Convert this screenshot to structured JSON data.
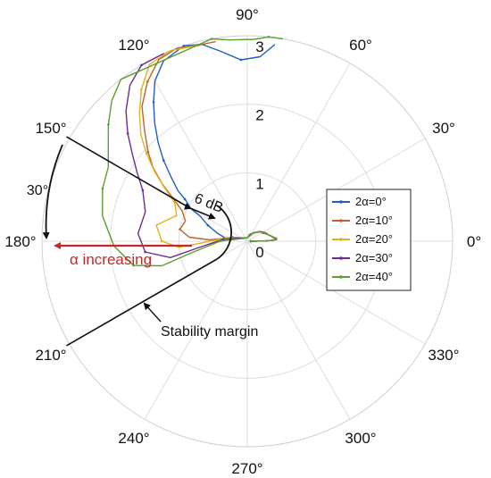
{
  "chart_data": {
    "type": "polar_line",
    "title": "",
    "theta_unit": "deg",
    "r_range": [
      0,
      3
    ],
    "r_ticks": [
      "0",
      "1",
      "2",
      "3"
    ],
    "theta_ticks": [
      "0°",
      "30°",
      "60°",
      "90°",
      "120°",
      "150°",
      "180°",
      "210°",
      "240°",
      "270°",
      "300°",
      "330°"
    ],
    "grid": true,
    "legend_position": "right",
    "series": [
      {
        "name": "2α=0°",
        "color": "#1f5fbf",
        "points": [
          [
            0.0,
            0.05
          ],
          [
            1,
            0.25
          ],
          [
            2,
            0.38
          ],
          [
            4,
            0.42
          ],
          [
            8,
            0.38
          ],
          [
            14,
            0.34
          ],
          [
            22,
            0.3
          ],
          [
            32,
            0.26
          ],
          [
            45,
            0.18
          ],
          [
            60,
            0.12
          ],
          [
            90,
            0.05
          ],
          [
            130,
            0.06
          ],
          [
            165,
            0.22
          ],
          [
            172,
            0.32
          ],
          [
            165,
            0.45
          ],
          [
            158,
            0.62
          ],
          [
            152,
            0.78
          ],
          [
            150,
            0.95
          ],
          [
            146,
            1.1
          ],
          [
            144,
            1.25
          ],
          [
            140,
            1.45
          ],
          [
            136,
            1.7
          ],
          [
            132,
            1.95
          ],
          [
            128,
            2.2
          ],
          [
            124,
            2.45
          ],
          [
            120,
            2.7
          ],
          [
            115,
            2.9
          ],
          [
            108,
            3.0
          ],
          [
            103,
            2.95
          ],
          [
            98,
            2.8
          ],
          [
            92,
            2.65
          ],
          [
            86,
            2.7
          ],
          [
            82,
            2.9
          ]
        ]
      },
      {
        "name": "2α=10°",
        "color": "#c0622a",
        "points": [
          [
            0.0,
            0.05
          ],
          [
            1,
            0.25
          ],
          [
            2,
            0.38
          ],
          [
            4,
            0.42
          ],
          [
            9,
            0.38
          ],
          [
            16,
            0.33
          ],
          [
            24,
            0.29
          ],
          [
            34,
            0.25
          ],
          [
            48,
            0.17
          ],
          [
            64,
            0.11
          ],
          [
            90,
            0.05
          ],
          [
            135,
            0.07
          ],
          [
            168,
            0.25
          ],
          [
            178,
            0.55
          ],
          [
            176,
            0.85
          ],
          [
            170,
            1.0
          ],
          [
            162,
            0.95
          ],
          [
            155,
            1.05
          ],
          [
            150,
            1.25
          ],
          [
            146,
            1.5
          ],
          [
            142,
            1.75
          ],
          [
            138,
            1.95
          ],
          [
            133,
            2.2
          ],
          [
            128,
            2.5
          ],
          [
            122,
            2.75
          ],
          [
            116,
            2.95
          ],
          [
            110,
            3.0
          ],
          [
            104,
            2.95
          ],
          [
            99,
            2.95
          ]
        ]
      },
      {
        "name": "2α=20°",
        "color": "#e0b21c",
        "points": [
          [
            0.0,
            0.05
          ],
          [
            1,
            0.25
          ],
          [
            2,
            0.38
          ],
          [
            5,
            0.42
          ],
          [
            10,
            0.37
          ],
          [
            18,
            0.32
          ],
          [
            26,
            0.28
          ],
          [
            36,
            0.24
          ],
          [
            50,
            0.16
          ],
          [
            66,
            0.1
          ],
          [
            90,
            0.05
          ],
          [
            140,
            0.07
          ],
          [
            170,
            0.3
          ],
          [
            182,
            0.65
          ],
          [
            185,
            1.0
          ],
          [
            180,
            1.25
          ],
          [
            170,
            1.35
          ],
          [
            160,
            1.1
          ],
          [
            152,
            1.2
          ],
          [
            147,
            1.45
          ],
          [
            143,
            1.7
          ],
          [
            139,
            1.95
          ],
          [
            135,
            2.2
          ],
          [
            130,
            2.45
          ],
          [
            125,
            2.7
          ],
          [
            119,
            2.95
          ],
          [
            112,
            3.0
          ],
          [
            105,
            2.95
          ]
        ]
      },
      {
        "name": "2α=30°",
        "color": "#6a2d8f",
        "points": [
          [
            0.0,
            0.05
          ],
          [
            1,
            0.25
          ],
          [
            2,
            0.38
          ],
          [
            5,
            0.42
          ],
          [
            11,
            0.37
          ],
          [
            19,
            0.31
          ],
          [
            27,
            0.27
          ],
          [
            38,
            0.23
          ],
          [
            52,
            0.16
          ],
          [
            68,
            0.1
          ],
          [
            90,
            0.05
          ],
          [
            145,
            0.08
          ],
          [
            175,
            0.35
          ],
          [
            188,
            0.75
          ],
          [
            192,
            1.15
          ],
          [
            186,
            1.5
          ],
          [
            176,
            1.6
          ],
          [
            164,
            1.55
          ],
          [
            154,
            1.7
          ],
          [
            148,
            1.9
          ],
          [
            143,
            2.1
          ],
          [
            138,
            2.35
          ],
          [
            133,
            2.6
          ],
          [
            127,
            2.85
          ],
          [
            121,
            3.0
          ],
          [
            114,
            3.0
          ]
        ]
      },
      {
        "name": "2α=40°",
        "color": "#5aa02c",
        "points": [
          [
            0.0,
            0.05
          ],
          [
            1,
            0.25
          ],
          [
            2,
            0.38
          ],
          [
            6,
            0.42
          ],
          [
            12,
            0.36
          ],
          [
            20,
            0.3
          ],
          [
            28,
            0.26
          ],
          [
            40,
            0.22
          ],
          [
            54,
            0.15
          ],
          [
            70,
            0.09
          ],
          [
            90,
            0.05
          ],
          [
            150,
            0.08
          ],
          [
            180,
            0.4
          ],
          [
            192,
            0.85
          ],
          [
            196,
            1.3
          ],
          [
            192,
            1.7
          ],
          [
            182,
            1.95
          ],
          [
            170,
            2.15
          ],
          [
            160,
            2.25
          ],
          [
            152,
            2.3
          ],
          [
            146,
            2.45
          ],
          [
            140,
            2.65
          ],
          [
            134,
            2.85
          ],
          [
            128,
            3.0
          ],
          [
            100,
            3.0
          ],
          [
            95,
            2.95
          ],
          [
            88,
            2.95
          ],
          [
            84,
            3.0
          ],
          [
            80,
            3.0
          ]
        ]
      }
    ],
    "annotations": {
      "db_label": "6 dB",
      "sector_label": "30°",
      "alpha_label": "α increasing",
      "margin_label": "Stability margin"
    }
  }
}
